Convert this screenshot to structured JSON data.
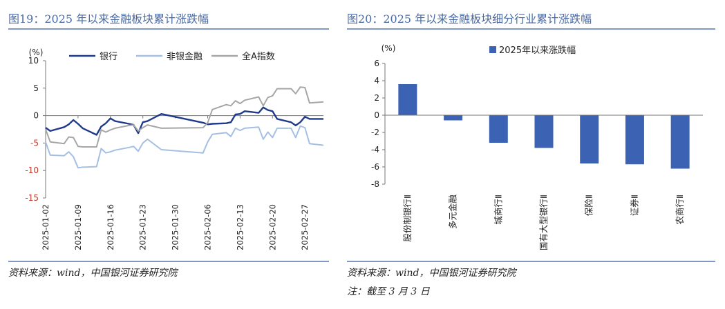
{
  "left": {
    "title": "图19：2025 年以来金融板块累计涨跌幅",
    "source": "资料来源：wind，中国银河证券研究院",
    "chart_data": {
      "type": "line",
      "ylabel": "(%)",
      "ylim": [
        -15,
        10
      ],
      "yticks": [
        10,
        5,
        0,
        -5,
        -10,
        -15
      ],
      "x_start": "2025-01-02",
      "x_end": "2025-03-03",
      "xticks": [
        "2025-01-02",
        "2025-01-09",
        "2025-01-16",
        "2025-01-23",
        "2025-01-30",
        "2025-02-06",
        "2025-02-13",
        "2025-02-20",
        "2025-02-27"
      ],
      "legend_position": "top",
      "series": [
        {
          "name": "银行",
          "color": "#1f3a8a",
          "x": [
            "2025-01-02",
            "2025-01-03",
            "2025-01-06",
            "2025-01-07",
            "2025-01-08",
            "2025-01-09",
            "2025-01-10",
            "2025-01-13",
            "2025-01-14",
            "2025-01-15",
            "2025-01-16",
            "2025-01-17",
            "2025-01-20",
            "2025-01-21",
            "2025-01-22",
            "2025-01-23",
            "2025-01-24",
            "2025-01-27",
            "2025-02-05",
            "2025-02-06",
            "2025-02-07",
            "2025-02-10",
            "2025-02-11",
            "2025-02-12",
            "2025-02-13",
            "2025-02-14",
            "2025-02-17",
            "2025-02-18",
            "2025-02-19",
            "2025-02-20",
            "2025-02-21",
            "2025-02-24",
            "2025-02-25",
            "2025-02-26",
            "2025-02-27",
            "2025-02-28",
            "2025-03-03"
          ],
          "values": [
            -2.2,
            -2.8,
            -2.1,
            -1.6,
            -0.8,
            -1.5,
            -2.3,
            -3.5,
            -2.0,
            -1.4,
            -0.5,
            -1.0,
            -1.5,
            -1.7,
            -3.2,
            -1.2,
            -1.0,
            0.3,
            -1.3,
            -1.6,
            -1.5,
            -1.4,
            -1.2,
            0.2,
            0.3,
            0.8,
            0.5,
            1.5,
            1.0,
            0.8,
            -0.6,
            -1.2,
            -1.8,
            -1.2,
            -0.2,
            -0.6,
            -0.6
          ]
        },
        {
          "name": "非银金融",
          "color": "#a5bfe3",
          "x": [
            "2025-01-02",
            "2025-01-03",
            "2025-01-06",
            "2025-01-07",
            "2025-01-08",
            "2025-01-09",
            "2025-01-10",
            "2025-01-13",
            "2025-01-14",
            "2025-01-15",
            "2025-01-16",
            "2025-01-17",
            "2025-01-20",
            "2025-01-21",
            "2025-01-22",
            "2025-01-23",
            "2025-01-24",
            "2025-01-27",
            "2025-02-05",
            "2025-02-06",
            "2025-02-07",
            "2025-02-10",
            "2025-02-11",
            "2025-02-12",
            "2025-02-13",
            "2025-02-14",
            "2025-02-17",
            "2025-02-18",
            "2025-02-19",
            "2025-02-20",
            "2025-02-21",
            "2025-02-24",
            "2025-02-25",
            "2025-02-26",
            "2025-02-27",
            "2025-02-28",
            "2025-03-03"
          ],
          "values": [
            -4.8,
            -7.2,
            -7.3,
            -6.6,
            -7.5,
            -9.5,
            -9.4,
            -9.3,
            -6.0,
            -6.8,
            -6.6,
            -6.3,
            -5.8,
            -5.6,
            -6.5,
            -5.0,
            -4.3,
            -6.2,
            -6.8,
            -4.8,
            -3.4,
            -3.1,
            -3.8,
            -2.3,
            -2.7,
            -2.3,
            -2.1,
            -4.3,
            -3.0,
            -4.0,
            -2.3,
            -2.3,
            -4.0,
            -1.9,
            -2.2,
            -5.1,
            -5.4
          ]
        },
        {
          "name": "全A指数",
          "color": "#a6a6a6",
          "x": [
            "2025-01-02",
            "2025-01-03",
            "2025-01-06",
            "2025-01-07",
            "2025-01-08",
            "2025-01-09",
            "2025-01-10",
            "2025-01-13",
            "2025-01-14",
            "2025-01-15",
            "2025-01-16",
            "2025-01-17",
            "2025-01-20",
            "2025-01-21",
            "2025-01-22",
            "2025-01-23",
            "2025-01-24",
            "2025-01-27",
            "2025-02-05",
            "2025-02-06",
            "2025-02-07",
            "2025-02-10",
            "2025-02-11",
            "2025-02-12",
            "2025-02-13",
            "2025-02-14",
            "2025-02-17",
            "2025-02-18",
            "2025-02-19",
            "2025-02-20",
            "2025-02-21",
            "2025-02-24",
            "2025-02-25",
            "2025-02-26",
            "2025-02-27",
            "2025-02-28",
            "2025-03-03"
          ],
          "values": [
            -2.5,
            -4.8,
            -5.1,
            -3.9,
            -4.0,
            -5.6,
            -5.7,
            -5.7,
            -2.6,
            -3.0,
            -2.6,
            -2.3,
            -1.8,
            -1.7,
            -2.8,
            -2.2,
            -1.7,
            -2.3,
            -2.2,
            -1.3,
            1.1,
            2.0,
            1.8,
            2.7,
            2.2,
            2.8,
            3.4,
            1.8,
            3.3,
            3.6,
            4.9,
            4.9,
            4.0,
            5.2,
            5.1,
            2.3,
            2.5
          ]
        }
      ]
    }
  },
  "right": {
    "title": "图20：2025 年以来金融板块细分行业累计涨跌幅",
    "source": "资料来源：wind，中国银河证券研究院",
    "note": "注：截至 3 月 3 日",
    "chart_data": {
      "type": "bar",
      "ylabel": "(%)",
      "ylim": [
        -8,
        6
      ],
      "yticks": [
        6,
        4,
        2,
        0,
        -2,
        -4,
        -6,
        -8
      ],
      "legend_position": "top",
      "categories": [
        "股份制银行Ⅱ",
        "多元金融",
        "城商行Ⅱ",
        "国有大型银行Ⅱ",
        "保险Ⅱ",
        "证券Ⅱ",
        "农商行Ⅱ"
      ],
      "series": [
        {
          "name": "2025年以来涨跌幅",
          "color": "#3c62b3",
          "values": [
            3.6,
            -0.6,
            -3.2,
            -3.8,
            -5.6,
            -5.7,
            -6.2
          ]
        }
      ]
    }
  }
}
